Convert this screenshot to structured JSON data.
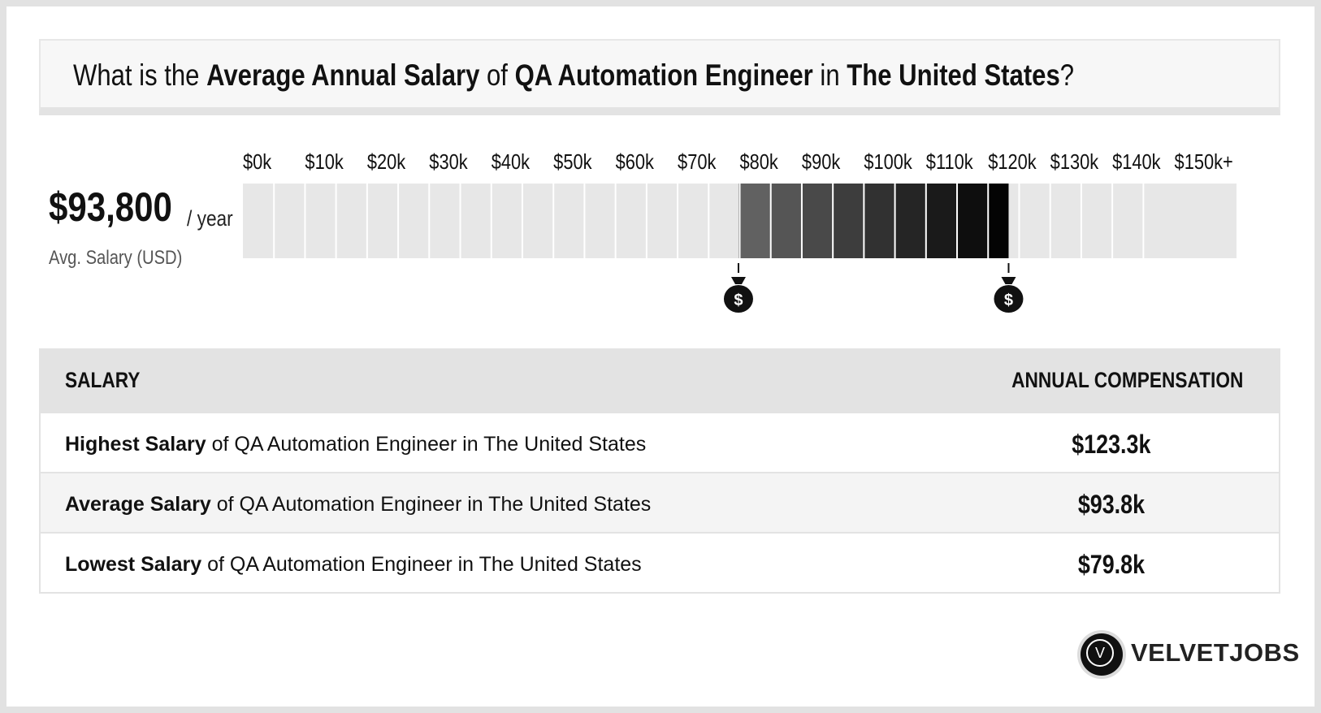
{
  "header": {
    "q_prefix": "What is the ",
    "q_metric": "Average Annual Salary",
    "q_of": " of ",
    "q_job": "QA Automation Engineer",
    "q_in": " in ",
    "q_place": "The United States",
    "q_end": "?"
  },
  "summary": {
    "amount": "$93,800",
    "unit": "/ year",
    "label": "Avg. Salary (USD)"
  },
  "chart_data": {
    "type": "bar",
    "ticks": [
      "$0k",
      "$10k",
      "$20k",
      "$30k",
      "$40k",
      "$50k",
      "$60k",
      "$70k",
      "$80k",
      "$90k",
      "$100k",
      "$110k",
      "$120k",
      "$130k",
      "$140k",
      "$150k+"
    ],
    "range_k": [
      0,
      160
    ],
    "highlight_range_k": [
      79.8,
      123.3
    ],
    "markers_k": [
      79.8,
      123.3
    ],
    "marker_icon": "money-bag-icon",
    "marker_symbol": "$",
    "colors": {
      "empty": "#e7e7e7",
      "range_start": "#676767",
      "range_end": "#000000"
    }
  },
  "table": {
    "col_salary": "SALARY",
    "col_comp": "ANNUAL COMPENSATION",
    "rows": [
      {
        "label": "Highest Salary",
        "rest": " of QA Automation Engineer in The United States",
        "value": "$123.3k"
      },
      {
        "label": "Average Salary",
        "rest": " of QA Automation Engineer in The United States",
        "value": "$93.8k"
      },
      {
        "label": "Lowest Salary",
        "rest": " of QA Automation Engineer in The United States",
        "value": "$79.8k"
      }
    ]
  },
  "logo": {
    "letter": "V",
    "word": "VELVETJOBS"
  }
}
